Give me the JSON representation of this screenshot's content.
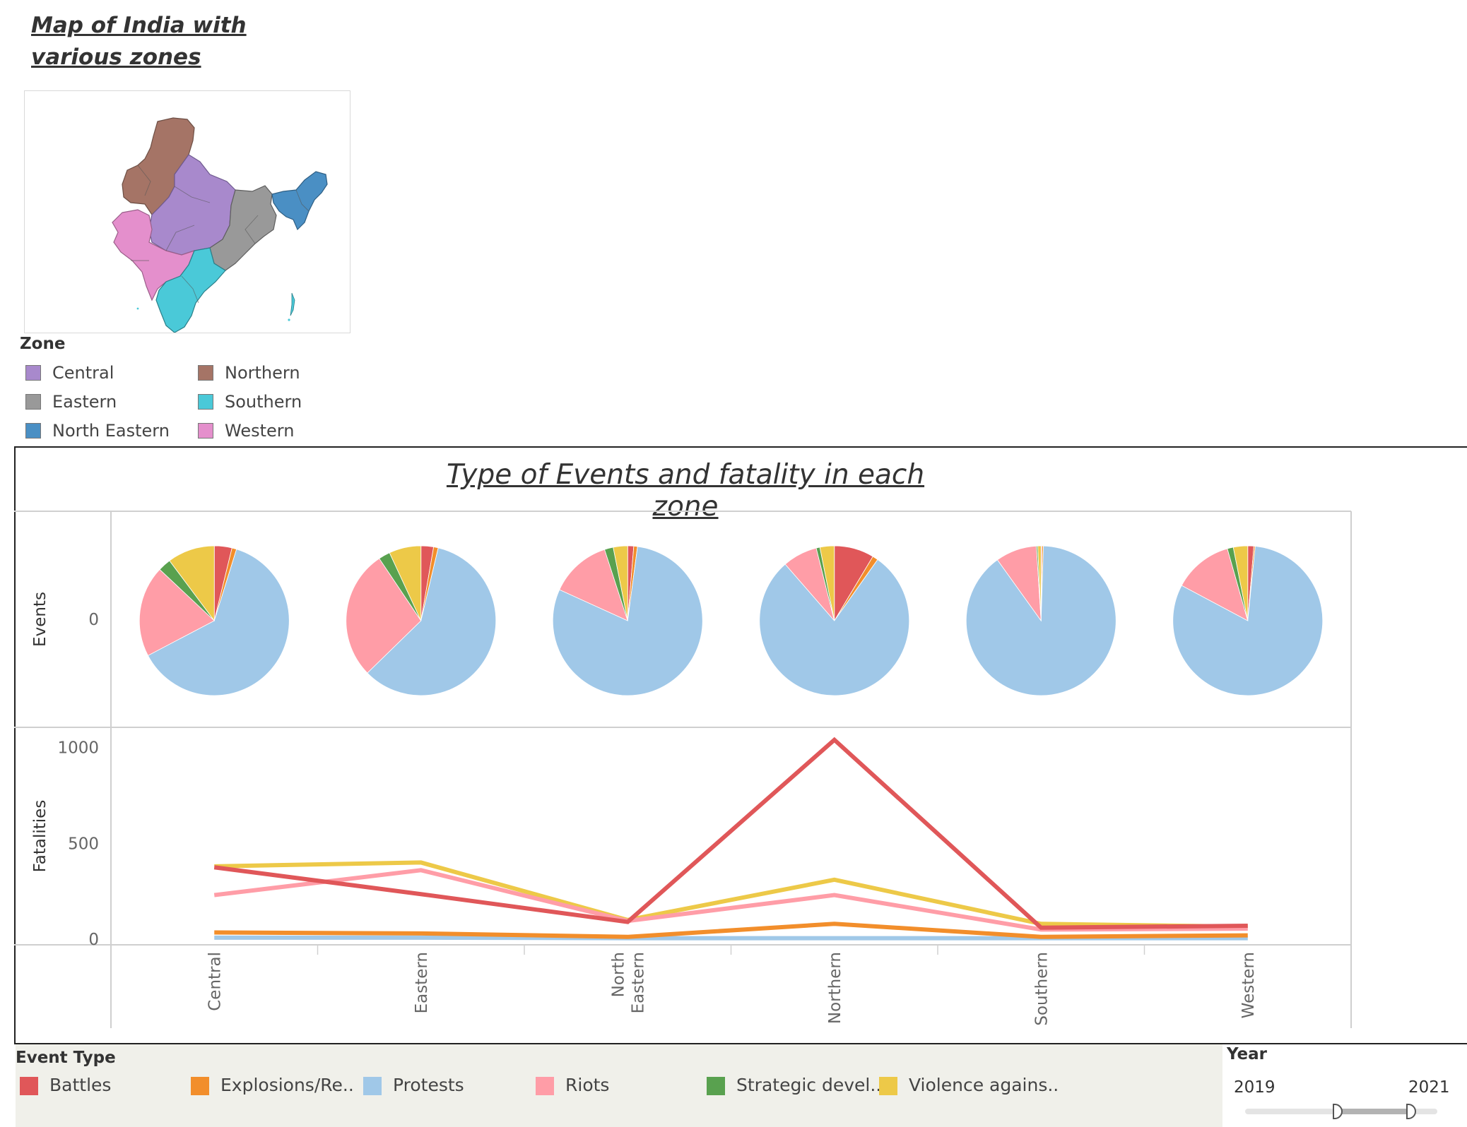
{
  "map": {
    "title": "Map of India with various zones",
    "legend_title": "Zone",
    "zones": [
      {
        "name": "Central",
        "color": "#a889cc"
      },
      {
        "name": "Northern",
        "color": "#a57466"
      },
      {
        "name": "Eastern",
        "color": "#999999"
      },
      {
        "name": "Southern",
        "color": "#4ac9d8"
      },
      {
        "name": "North Eastern",
        "color": "#4a8fc4"
      },
      {
        "name": "Western",
        "color": "#e48fcc"
      }
    ]
  },
  "dashboard": {
    "title": "Type of Events and fatality in each zone"
  },
  "event_legend": {
    "title": "Event Type",
    "items": [
      {
        "label": "Battles",
        "color": "#e05759"
      },
      {
        "label": "Explosions/Re..",
        "color": "#f28e2b"
      },
      {
        "label": "Protests",
        "color": "#a0c8e8"
      },
      {
        "label": "Riots",
        "color": "#ff9da7"
      },
      {
        "label": "Strategic devel..",
        "color": "#59a14f"
      },
      {
        "label": "Violence agains..",
        "color": "#edc948"
      }
    ]
  },
  "year_filter": {
    "title": "Year",
    "min": "2019",
    "max": "2021"
  },
  "chart_data": [
    {
      "type": "pie",
      "ylabel": "Events",
      "y_tick": "0",
      "categories": [
        "Central",
        "Eastern",
        "North Eastern",
        "Northern",
        "Southern",
        "Western"
      ],
      "slice_order": [
        "Battles",
        "Explosions/Re..",
        "Protests",
        "Riots",
        "Strategic devel..",
        "Violence agains.."
      ],
      "colors": [
        "#e05759",
        "#f28e2b",
        "#a0c8e8",
        "#ff9da7",
        "#59a14f",
        "#edc948"
      ],
      "shares_percent": [
        [
          3.8,
          1.0,
          62.5,
          19.7,
          2.8,
          10.2
        ],
        [
          2.7,
          1.0,
          59.0,
          27.9,
          2.5,
          6.9
        ],
        [
          1.3,
          0.8,
          79.7,
          13.2,
          1.9,
          3.1
        ],
        [
          8.6,
          1.2,
          78.8,
          7.5,
          0.8,
          3.1
        ],
        [
          0.2,
          0.3,
          89.6,
          8.9,
          0.3,
          0.7
        ],
        [
          1.3,
          0.3,
          81.2,
          12.8,
          1.3,
          3.1
        ]
      ]
    },
    {
      "type": "line",
      "ylabel": "Fatalities",
      "categories": [
        "Central",
        "Eastern",
        "North Eastern",
        "Northern",
        "Southern",
        "Western"
      ],
      "category_labels": [
        "Central",
        "Eastern",
        "North\nEastern",
        "Northern",
        "Southern",
        "Western"
      ],
      "ylim": [
        0,
        1120
      ],
      "yticks": [
        0,
        500,
        1000
      ],
      "series": [
        {
          "name": "Violence agains..",
          "color": "#edc948",
          "values": [
            380,
            400,
            100,
            310,
            80,
            65
          ]
        },
        {
          "name": "Riots",
          "color": "#ff9da7",
          "values": [
            230,
            360,
            95,
            230,
            50,
            55
          ]
        },
        {
          "name": "Protests",
          "color": "#a0c8e8",
          "values": [
            8,
            8,
            5,
            5,
            5,
            5
          ]
        },
        {
          "name": "Explosions/Re..",
          "color": "#f28e2b",
          "values": [
            35,
            30,
            12,
            80,
            12,
            20
          ]
        },
        {
          "name": "Battles",
          "color": "#e05759",
          "values": [
            375,
            235,
            90,
            1040,
            60,
            70
          ]
        }
      ]
    }
  ]
}
